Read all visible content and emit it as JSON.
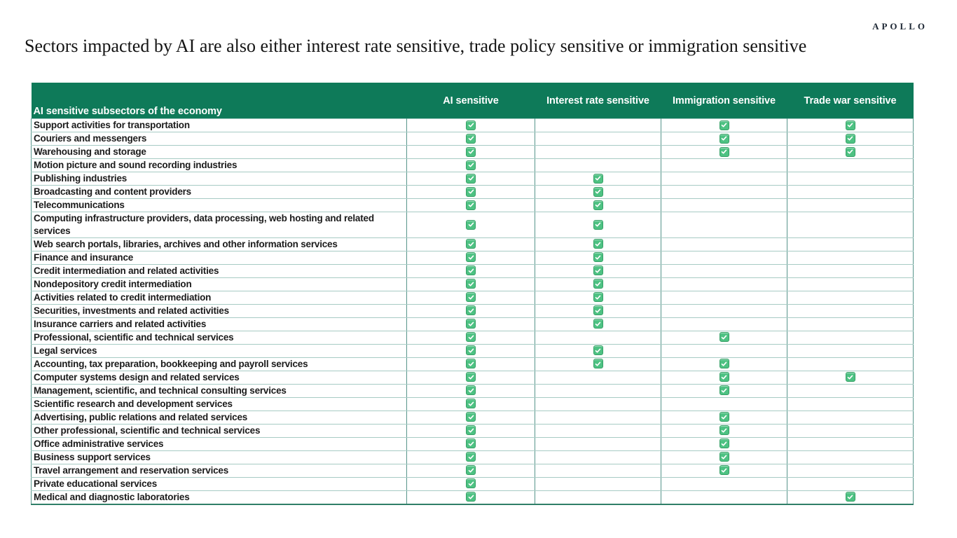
{
  "brand": "APOLLO",
  "title": "Sectors impacted by AI are also either interest rate sensitive, trade policy sensitive or immigration sensitive",
  "chart_data": {
    "type": "table",
    "row_header": "AI sensitive subsectors of the economy",
    "columns": [
      "AI sensitive",
      "Interest rate sensitive",
      "Immigration sensitive",
      "Trade war sensitive"
    ],
    "check_icon": "check-icon",
    "rows": [
      {
        "label": "Support activities for transportation",
        "checks": [
          true,
          false,
          true,
          true
        ]
      },
      {
        "label": "Couriers and messengers",
        "checks": [
          true,
          false,
          true,
          true
        ]
      },
      {
        "label": "Warehousing and storage",
        "checks": [
          true,
          false,
          true,
          true
        ]
      },
      {
        "label": "Motion picture and sound recording industries",
        "checks": [
          true,
          false,
          false,
          false
        ]
      },
      {
        "label": "Publishing industries",
        "checks": [
          true,
          true,
          false,
          false
        ]
      },
      {
        "label": "Broadcasting and content providers",
        "checks": [
          true,
          true,
          false,
          false
        ]
      },
      {
        "label": "Telecommunications",
        "checks": [
          true,
          true,
          false,
          false
        ]
      },
      {
        "label": "Computing infrastructure providers, data processing, web hosting and related services",
        "checks": [
          true,
          true,
          false,
          false
        ]
      },
      {
        "label": "Web search portals, libraries, archives and other information services",
        "checks": [
          true,
          true,
          false,
          false
        ]
      },
      {
        "label": "Finance and insurance",
        "checks": [
          true,
          true,
          false,
          false
        ]
      },
      {
        "label": "Credit intermediation and related activities",
        "checks": [
          true,
          true,
          false,
          false
        ]
      },
      {
        "label": "Nondepository credit intermediation",
        "checks": [
          true,
          true,
          false,
          false
        ]
      },
      {
        "label": "Activities related to credit intermediation",
        "checks": [
          true,
          true,
          false,
          false
        ]
      },
      {
        "label": "Securities, investments and related activities",
        "checks": [
          true,
          true,
          false,
          false
        ]
      },
      {
        "label": "Insurance carriers and related activities",
        "checks": [
          true,
          true,
          false,
          false
        ]
      },
      {
        "label": "Professional, scientific and technical services",
        "checks": [
          true,
          false,
          true,
          false
        ]
      },
      {
        "label": "Legal services",
        "checks": [
          true,
          true,
          false,
          false
        ]
      },
      {
        "label": "Accounting, tax preparation, bookkeeping and payroll services",
        "checks": [
          true,
          true,
          true,
          false
        ]
      },
      {
        "label": "Computer systems design and related services",
        "checks": [
          true,
          false,
          true,
          true
        ]
      },
      {
        "label": "Management, scientific, and technical consulting services",
        "checks": [
          true,
          false,
          true,
          false
        ]
      },
      {
        "label": "Scientific research and development services",
        "checks": [
          true,
          false,
          false,
          false
        ]
      },
      {
        "label": "Advertising, public relations and related services",
        "checks": [
          true,
          false,
          true,
          false
        ]
      },
      {
        "label": "Other professional, scientific and technical services",
        "checks": [
          true,
          false,
          true,
          false
        ]
      },
      {
        "label": "Office administrative services",
        "checks": [
          true,
          false,
          true,
          false
        ]
      },
      {
        "label": "Business support services",
        "checks": [
          true,
          false,
          true,
          false
        ]
      },
      {
        "label": "Travel arrangement and reservation services",
        "checks": [
          true,
          false,
          true,
          false
        ]
      },
      {
        "label": "Private educational services",
        "checks": [
          true,
          false,
          false,
          false
        ]
      },
      {
        "label": "Medical and diagnostic laboratories",
        "checks": [
          true,
          false,
          false,
          true
        ]
      }
    ]
  },
  "colors": {
    "header_bg": "#0E7A59",
    "check_green": "#4EC283",
    "check_border": "#35A066",
    "grid_vertical": "#57958B",
    "grid_horizontal": "#A7CBC4",
    "table_bottom_border": "#2F7F68",
    "brand_text": "#1C2633",
    "title_text": "#141414"
  }
}
